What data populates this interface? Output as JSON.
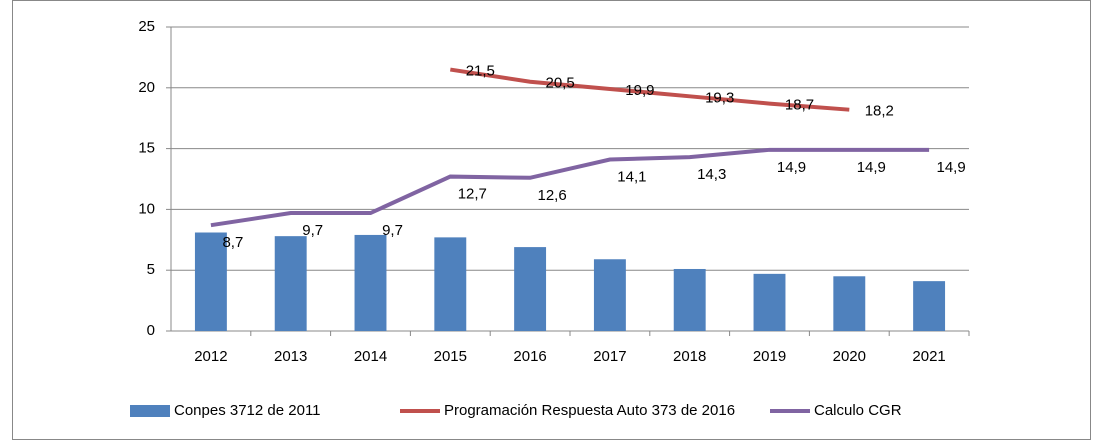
{
  "chart_data": {
    "type": "combo",
    "categories": [
      "2012",
      "2013",
      "2014",
      "2015",
      "2016",
      "2017",
      "2018",
      "2019",
      "2020",
      "2021"
    ],
    "series": [
      {
        "name": "Conpes 3712 de 2011",
        "type": "bar",
        "color": "#4f81bd",
        "values": [
          8.1,
          7.8,
          7.9,
          7.7,
          6.9,
          5.9,
          5.1,
          4.7,
          4.5,
          4.1
        ]
      },
      {
        "name": "Programación Respuesta Auto 373 de 2016",
        "type": "line",
        "color": "#c0504d",
        "values": [
          null,
          null,
          null,
          21.5,
          20.5,
          19.9,
          19.3,
          18.7,
          18.2,
          null
        ],
        "value_labels": [
          null,
          null,
          null,
          "21,5",
          "20,5",
          "19,9",
          "19,3",
          "18,7",
          "18,2",
          null
        ]
      },
      {
        "name": "Calculo CGR",
        "type": "line",
        "color": "#8064a2",
        "values": [
          8.7,
          9.7,
          9.7,
          12.7,
          12.6,
          14.1,
          14.3,
          14.9,
          14.9,
          14.9
        ],
        "value_labels": [
          "8,7",
          "9,7",
          "9,7",
          "12,7",
          "12,6",
          "14,1",
          "14,3",
          "14,9",
          "14,9",
          "14,9"
        ]
      }
    ],
    "ylim": [
      0,
      25
    ],
    "yticks": [
      0,
      5,
      10,
      15,
      20,
      25
    ],
    "grid": true,
    "legend": "bottom"
  }
}
